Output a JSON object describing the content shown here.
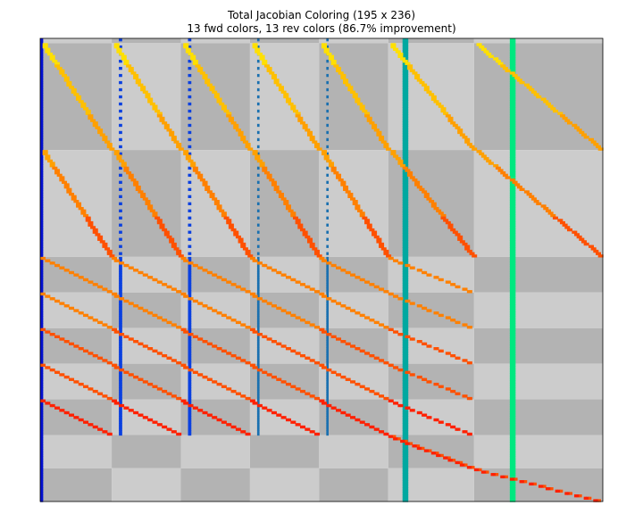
{
  "chart_data": {
    "type": "heatmap",
    "title": "Total Jacobian Coloring (195 x 236)",
    "subtitle": "13 fwd colors, 13 rev colors (86.7% improvement)",
    "shape": {
      "rows": 195,
      "cols": 236
    },
    "fwd_colors": 13,
    "rev_colors": 13,
    "improvement_pct": 86.7,
    "colors": {
      "background_light": "#cccccc",
      "background_dark": "#b3b3b3",
      "fwd_palette": [
        "#0010d0",
        "#0a40e0",
        "#1360c8",
        "#1a70b0",
        "#00a8a0",
        "#00e880"
      ],
      "rev_palette": [
        "#ffe000",
        "#ffc000",
        "#ffa000",
        "#ff8000",
        "#ff5000",
        "#ff2000"
      ]
    },
    "col_blocks": [
      0,
      30,
      59,
      88,
      117,
      146,
      182,
      236
    ],
    "row_blocks": [
      0,
      2,
      47,
      92,
      107,
      122,
      137,
      152,
      167,
      181,
      195
    ]
  }
}
